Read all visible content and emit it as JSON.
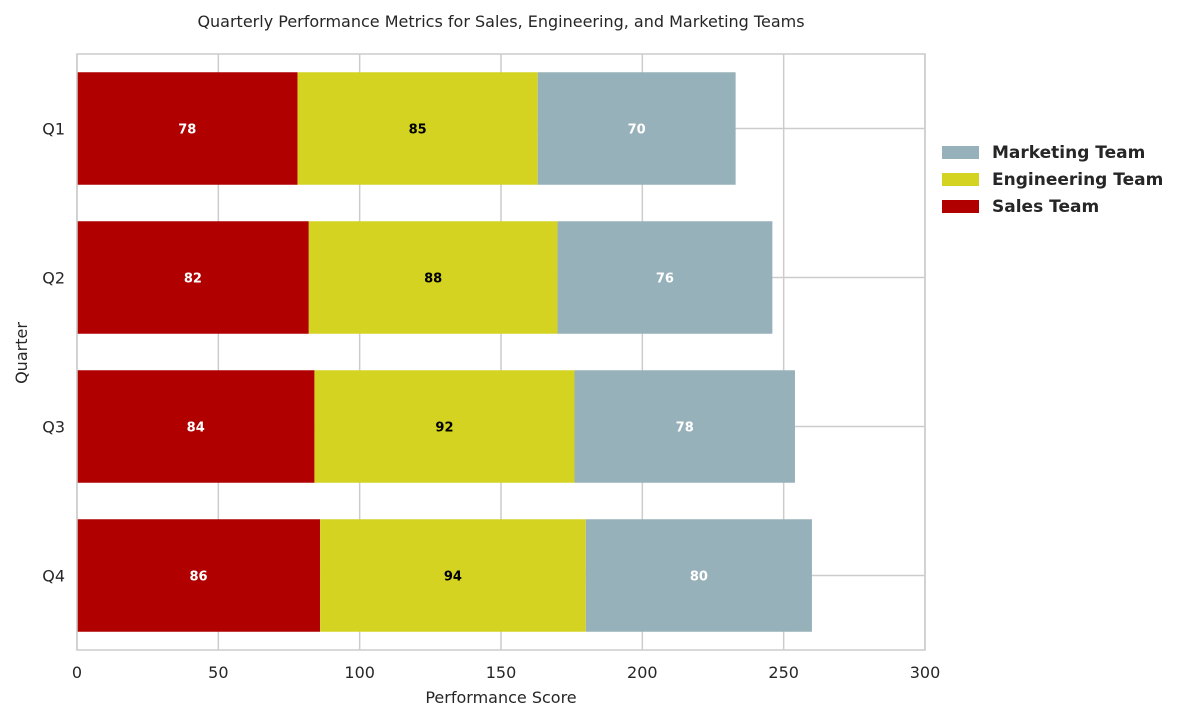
{
  "chart_data": {
    "type": "bar",
    "orientation": "horizontal",
    "stacked": true,
    "title": "Quarterly Performance Metrics for Sales, Engineering, and Marketing Teams",
    "xlabel": "Performance Score",
    "ylabel": "Quarter",
    "categories": [
      "Q1",
      "Q2",
      "Q3",
      "Q4"
    ],
    "xlim": [
      0,
      300
    ],
    "xticks": [
      0,
      50,
      100,
      150,
      200,
      250,
      300
    ],
    "grid": true,
    "legend_position": "right",
    "series": [
      {
        "name": "Sales Team",
        "color": "#b00000",
        "label_color": "#ffffff",
        "values": [
          78,
          82,
          84,
          86
        ]
      },
      {
        "name": "Engineering Team",
        "color": "#d4d322",
        "label_color": "#000000",
        "values": [
          85,
          88,
          92,
          94
        ]
      },
      {
        "name": "Marketing Team",
        "color": "#96b1b9",
        "label_color": "#ffffff",
        "values": [
          70,
          76,
          78,
          80
        ]
      }
    ],
    "legend_order": [
      "Marketing Team",
      "Engineering Team",
      "Sales Team"
    ]
  }
}
